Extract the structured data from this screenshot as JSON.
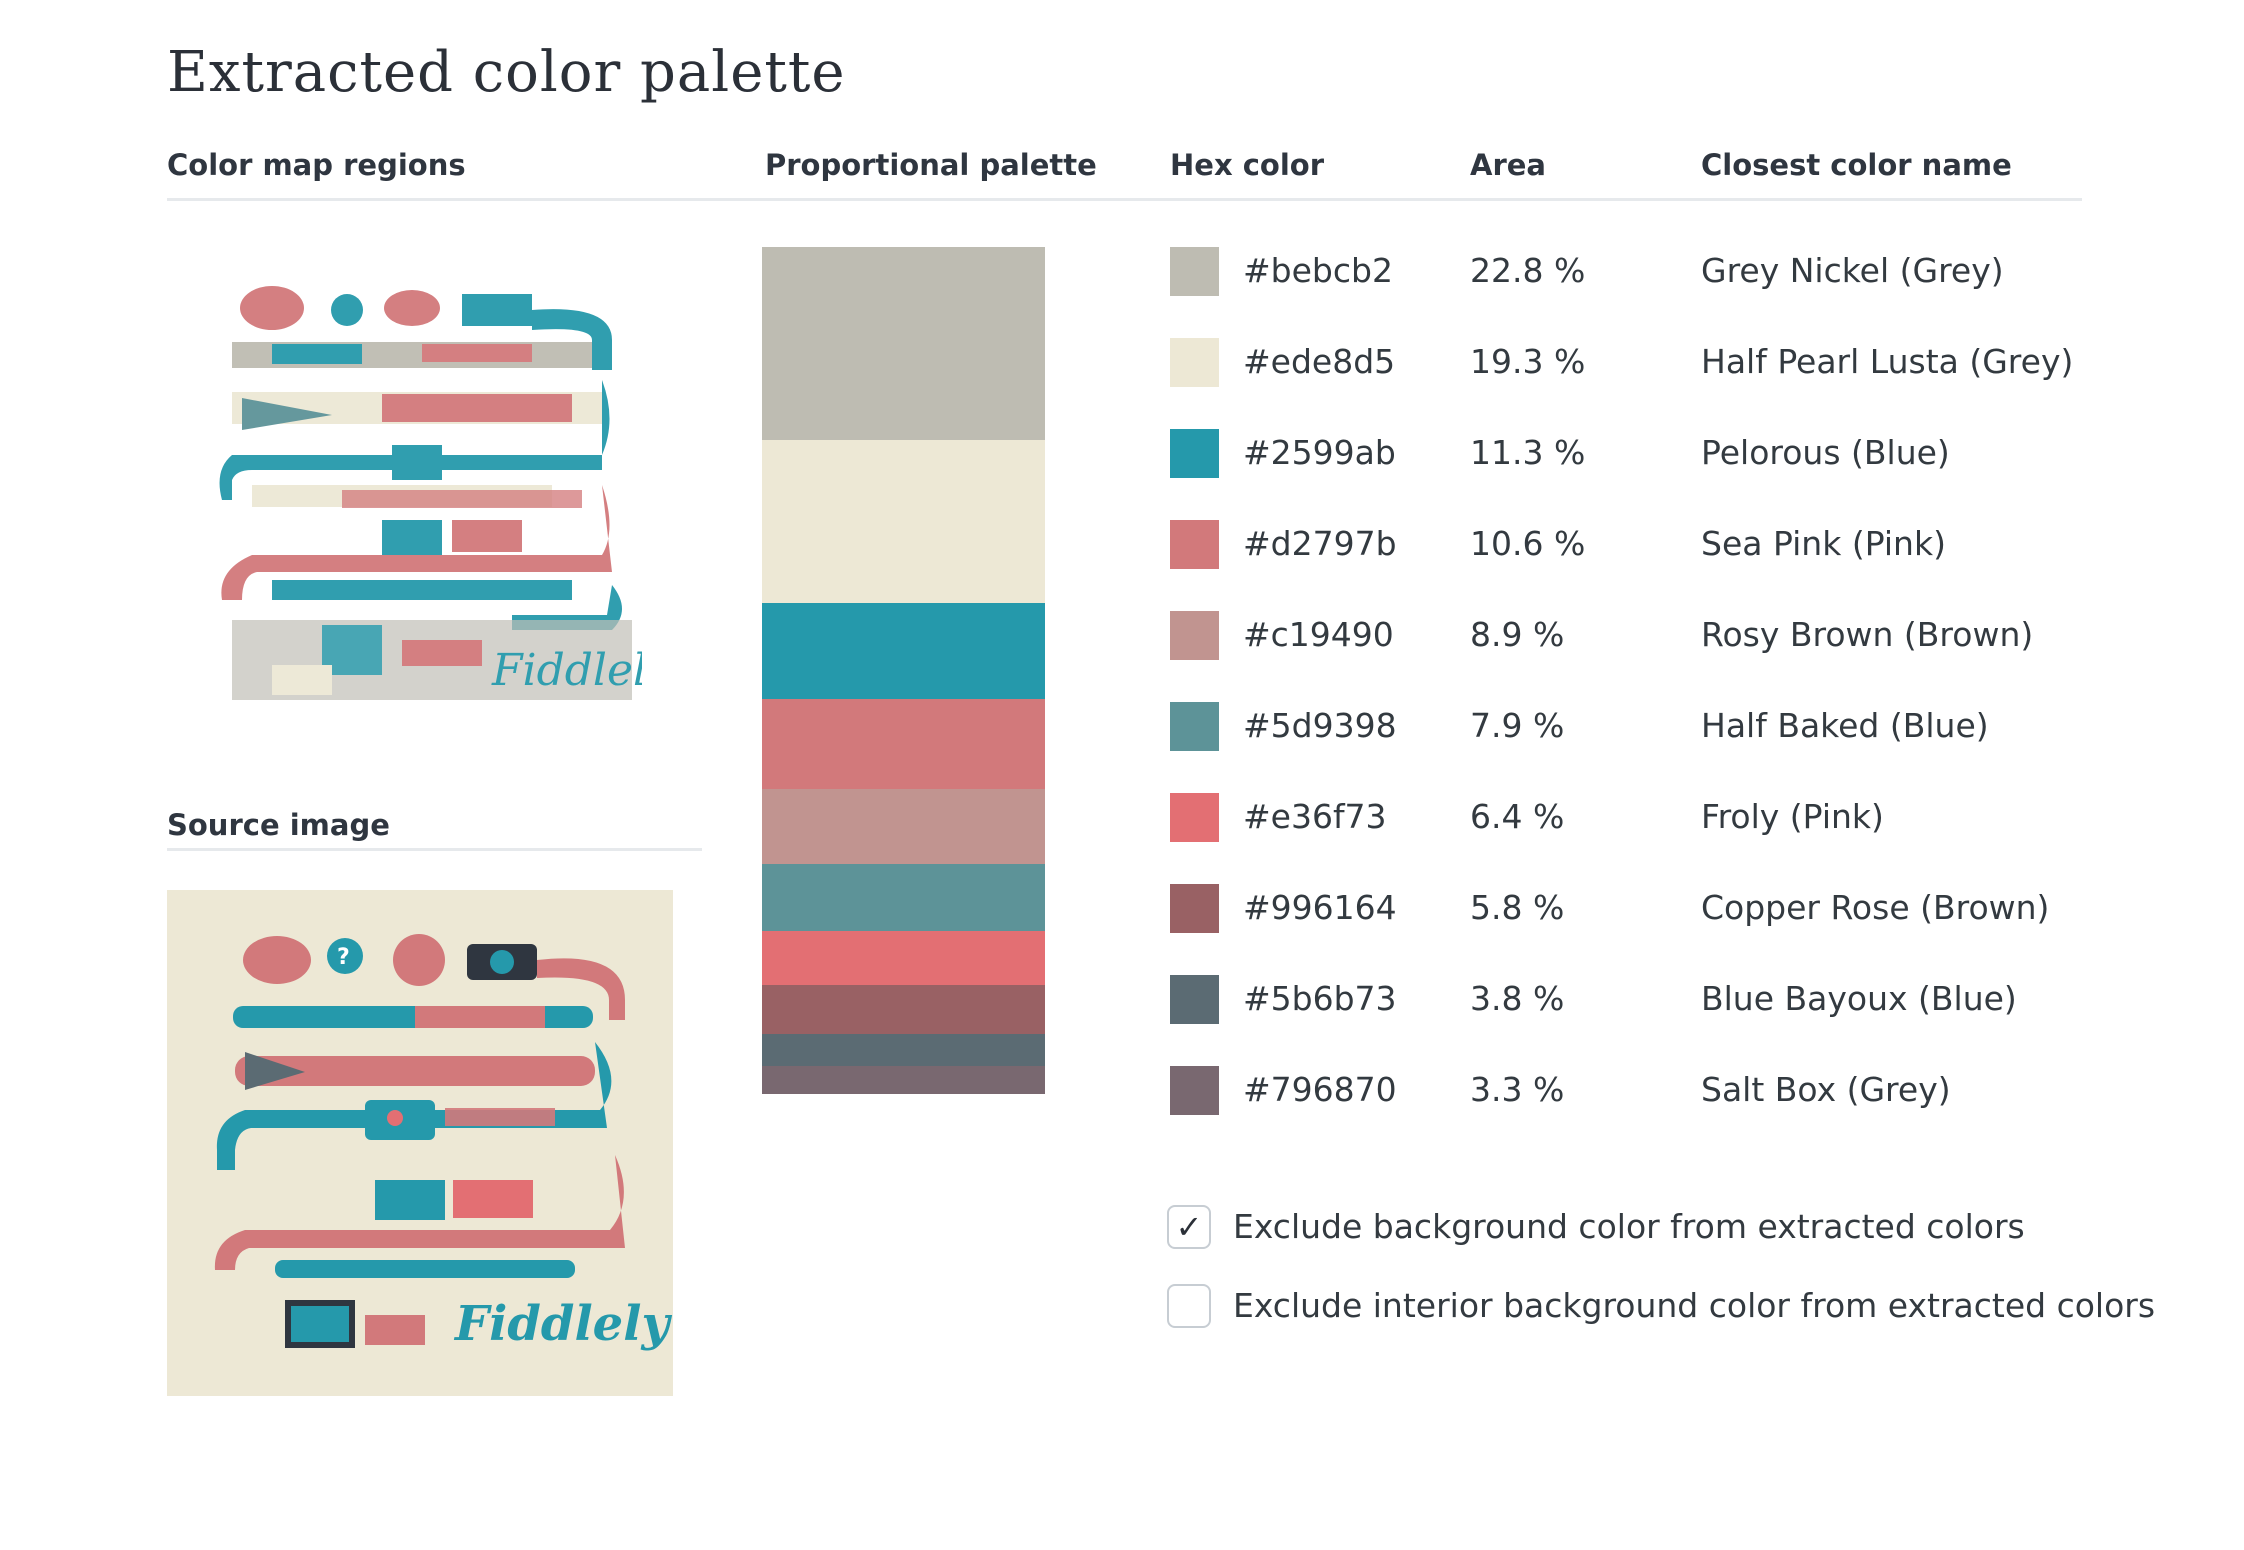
{
  "page": {
    "title": "Extracted color palette"
  },
  "headers": {
    "color_map_regions": "Color map regions",
    "proportional_palette": "Proportional palette",
    "hex_color": "Hex color",
    "area": "Area",
    "closest_color_name": "Closest color name",
    "source_image": "Source image"
  },
  "colors": [
    {
      "hex": "#bebcb2",
      "area": "22.8 %",
      "area_value": 22.8,
      "name": "Grey Nickel (Grey)"
    },
    {
      "hex": "#ede8d5",
      "area": "19.3 %",
      "area_value": 19.3,
      "name": "Half Pearl Lusta (Grey)"
    },
    {
      "hex": "#2599ab",
      "area": "11.3 %",
      "area_value": 11.3,
      "name": "Pelorous (Blue)"
    },
    {
      "hex": "#d2797b",
      "area": "10.6 %",
      "area_value": 10.6,
      "name": "Sea Pink (Pink)"
    },
    {
      "hex": "#c19490",
      "area": "8.9 %",
      "area_value": 8.9,
      "name": "Rosy Brown (Brown)"
    },
    {
      "hex": "#5d9398",
      "area": "7.9 %",
      "area_value": 7.9,
      "name": "Half Baked (Blue)"
    },
    {
      "hex": "#e36f73",
      "area": "6.4 %",
      "area_value": 6.4,
      "name": "Froly (Pink)"
    },
    {
      "hex": "#996164",
      "area": "5.8 %",
      "area_value": 5.8,
      "name": "Copper Rose (Brown)"
    },
    {
      "hex": "#5b6b73",
      "area": "3.8 %",
      "area_value": 3.8,
      "name": "Blue Bayoux (Blue)"
    },
    {
      "hex": "#796870",
      "area": "3.3 %",
      "area_value": 3.3,
      "name": "Salt Box (Grey)"
    }
  ],
  "options": {
    "exclude_background": {
      "label": "Exclude background color from extracted colors",
      "checked": true,
      "check_glyph": "✓"
    },
    "exclude_interior_background": {
      "label": "Exclude interior background color from extracted colors",
      "checked": false,
      "check_glyph": ""
    }
  }
}
